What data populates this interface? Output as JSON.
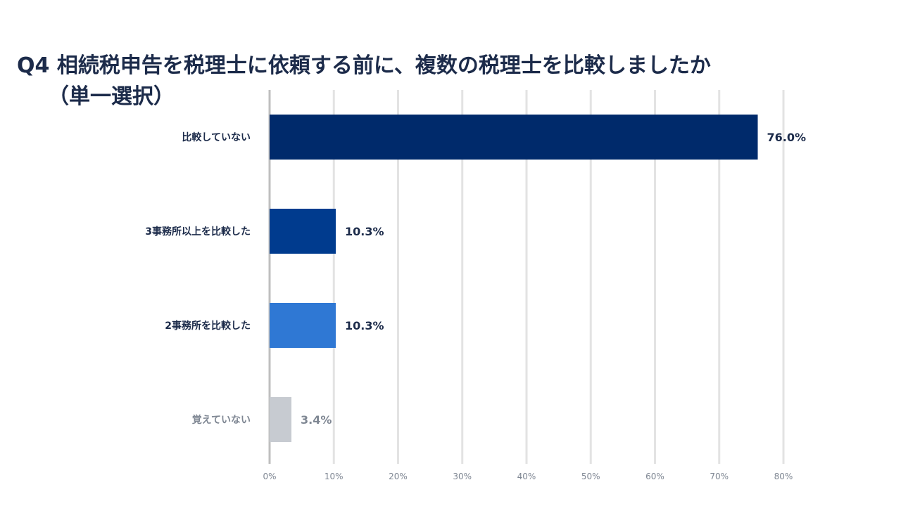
{
  "title_line1": "Q4  相続税申告を税理士に依頼する前に、複数の税理士を比較しましたか",
  "title_line2": "（単一選択）",
  "chart_data": {
    "type": "bar",
    "orientation": "horizontal",
    "categories": [
      "比較していない",
      "3事務所以上を比較した",
      "2事務所を比較した",
      "覚えていない"
    ],
    "values": [
      76.0,
      10.3,
      10.3,
      3.4
    ],
    "value_labels": [
      "76.0%",
      "10.3%",
      "10.3%",
      "3.4%"
    ],
    "colors": [
      "#002a6b",
      "#003b8e",
      "#2f78d4",
      "#c7cbd1"
    ],
    "label_colors": [
      "#1c2b4a",
      "#1c2b4a",
      "#1c2b4a",
      "#7f8793"
    ],
    "xlim": [
      0,
      80
    ],
    "ticks": [
      0,
      10,
      20,
      30,
      40,
      50,
      60,
      70,
      80
    ],
    "tick_labels": [
      "0%",
      "10%",
      "20%",
      "30%",
      "40%",
      "50%",
      "60%",
      "70%",
      "80%"
    ],
    "grid": true
  }
}
